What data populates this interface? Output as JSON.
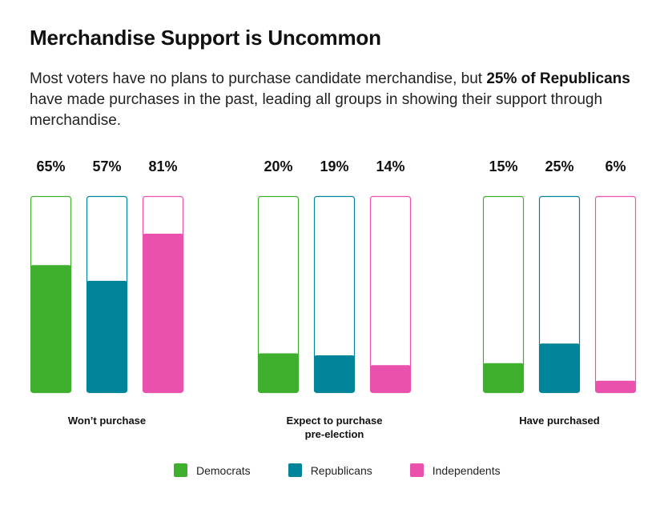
{
  "header": {
    "title": "Merchandise Support is Uncommon",
    "subtitle_part1": "Most voters have no plans to purchase candidate merchandise, but ",
    "subtitle_bold": "25% of Republicans",
    "subtitle_part2": " have made purchases in the past, leading all groups in showing their support through merchandise."
  },
  "colors": {
    "Democrats": "#3fb02e",
    "Republicans": "#00849a",
    "Independents": "#ea51ad"
  },
  "chart_data": {
    "type": "bar",
    "title": "Merchandise Support is Uncommon",
    "xlabel": "",
    "ylabel": "",
    "ylim": [
      0,
      100
    ],
    "grid": false,
    "legend_position": "bottom",
    "categories": [
      "Won’t purchase",
      "Expect to purchase pre-election",
      "Have purchased"
    ],
    "category_lines": [
      [
        "Won’t purchase"
      ],
      [
        "Expect to purchase",
        "pre-election"
      ],
      [
        "Have purchased"
      ]
    ],
    "series": [
      {
        "name": "Democrats",
        "values": [
          65,
          20,
          15
        ],
        "labels": [
          "65%",
          "20%",
          "15%"
        ]
      },
      {
        "name": "Republicans",
        "values": [
          57,
          19,
          25
        ],
        "labels": [
          "57%",
          "19%",
          "25%"
        ]
      },
      {
        "name": "Independents",
        "values": [
          81,
          14,
          6
        ],
        "labels": [
          "81%",
          "14%",
          "6%"
        ]
      }
    ]
  },
  "legend": {
    "items": [
      {
        "label": "Democrats",
        "color": "#3fb02e"
      },
      {
        "label": "Republicans",
        "color": "#00849a"
      },
      {
        "label": "Independents",
        "color": "#ea51ad"
      }
    ]
  }
}
